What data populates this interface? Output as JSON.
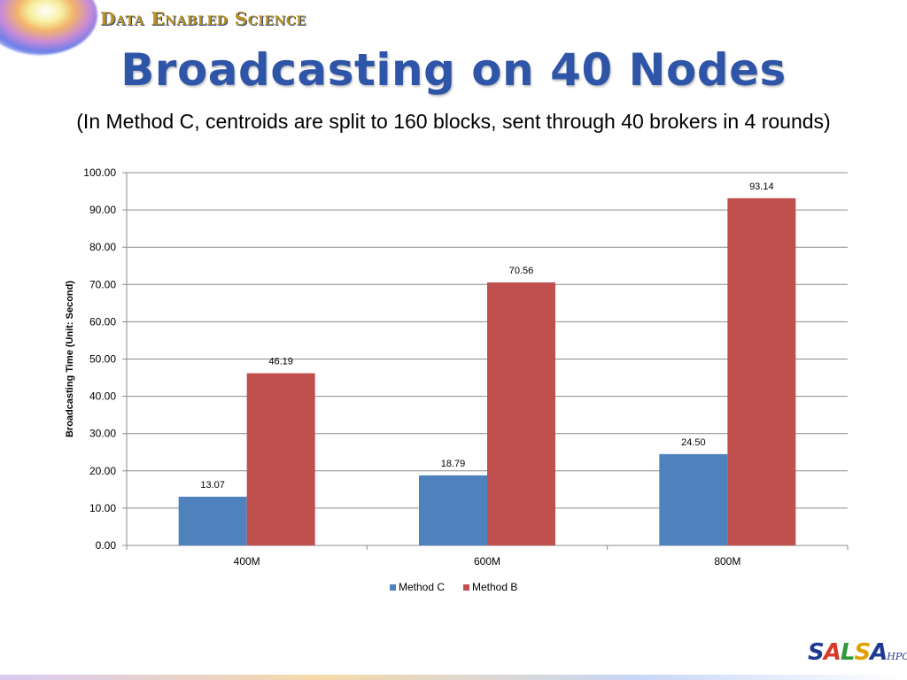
{
  "header": {
    "brand": "Data Enabled Science"
  },
  "slide": {
    "title": "Broadcasting on 40 Nodes",
    "subtitle": "(In Method C, centroids are split to 160 blocks, sent through 40 brokers in 4 rounds)"
  },
  "footer": {
    "logo_letters": [
      "S",
      "A",
      "L",
      "S",
      "A"
    ],
    "logo_suffix": "HPC"
  },
  "chart_data": {
    "type": "bar",
    "title": "",
    "xlabel": "",
    "ylabel": "Broadcasting Time (Unit: Second)",
    "categories": [
      "400M",
      "600M",
      "800M"
    ],
    "series": [
      {
        "name": "Method C",
        "values": [
          13.07,
          18.79,
          24.5
        ],
        "labels": [
          "13.07",
          "18.79",
          "24.50"
        ],
        "color": "#4f81bd"
      },
      {
        "name": "Method B",
        "values": [
          46.19,
          70.56,
          93.14
        ],
        "labels": [
          "46.19",
          "70.56",
          "93.14"
        ],
        "color": "#c0504d"
      }
    ],
    "ylim": [
      0,
      100
    ],
    "yticks": [
      "0.00",
      "10.00",
      "20.00",
      "30.00",
      "40.00",
      "50.00",
      "60.00",
      "70.00",
      "80.00",
      "90.00",
      "100.00"
    ],
    "grid": true,
    "legend": "bottom"
  }
}
